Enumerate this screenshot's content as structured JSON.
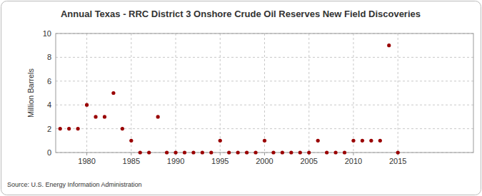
{
  "chart_data": {
    "type": "scatter",
    "title": "Annual Texas - RRC District 3 Onshore Crude Oil Reserves New Field Discoveries",
    "y_label": "Million Barrels",
    "source": "Source: U.S. Energy Information Administration",
    "x": [
      1977,
      1978,
      1979,
      1980,
      1981,
      1982,
      1983,
      1984,
      1985,
      1986,
      1987,
      1988,
      1989,
      1990,
      1991,
      1992,
      1993,
      1994,
      1995,
      1996,
      1997,
      1998,
      1999,
      2000,
      2001,
      2002,
      2003,
      2004,
      2005,
      2006,
      2007,
      2008,
      2009,
      2010,
      2011,
      2012,
      2013,
      2014,
      2015
    ],
    "values": [
      2,
      2,
      2,
      4,
      3,
      3,
      5,
      2,
      1,
      0,
      0,
      3,
      0,
      0,
      0,
      0,
      0,
      0,
      1,
      0,
      0,
      0,
      0,
      1,
      0,
      0,
      0,
      0,
      0,
      1,
      0,
      0,
      0,
      1,
      1,
      1,
      1,
      9,
      0
    ],
    "color": "#990000",
    "marker": "circle",
    "xlim": [
      1976.5,
      2023.5
    ],
    "xticks": [
      1980,
      1985,
      1990,
      1995,
      2000,
      2005,
      2010,
      2015
    ],
    "ylim": [
      0,
      10
    ],
    "yticks": [
      0,
      2,
      4,
      6,
      8,
      10
    ],
    "grid": true
  }
}
